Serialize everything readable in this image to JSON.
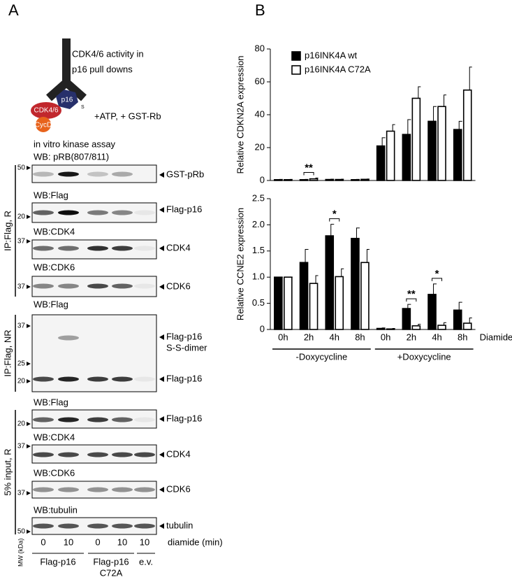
{
  "panel_a": {
    "label": "A",
    "schematic": {
      "title_lines": [
        "CDK4/6 activity in",
        "p16 pull downs"
      ],
      "proteins": [
        "p16",
        "CDK4/6",
        "CycD"
      ],
      "s_label": "S",
      "treatment": "+ATP, + GST-Rb"
    },
    "assay": "in vitro kinase assay",
    "blots": [
      {
        "wb": "WB: pRB(807/811)",
        "markers": [
          "50"
        ],
        "labels": [
          "GST-pRb"
        ]
      },
      {
        "wb": "WB:Flag",
        "markers": [
          "20"
        ],
        "labels": [
          "Flag-p16"
        ]
      },
      {
        "wb": "WB:CDK4",
        "markers": [
          "37"
        ],
        "labels": [
          "CDK4"
        ]
      },
      {
        "wb": "WB:CDK6",
        "markers": [
          "37"
        ],
        "labels": [
          "CDK6"
        ]
      },
      {
        "wb": "WB:Flag",
        "markers": [
          "37",
          "25",
          "20"
        ],
        "labels": [
          "Flag-p16",
          "S-S-dimer",
          "Flag-p16"
        ]
      },
      {
        "wb": "WB:Flag",
        "markers": [
          "20"
        ],
        "labels": [
          "Flag-p16"
        ]
      },
      {
        "wb": "WB:CDK4",
        "markers": [
          "37"
        ],
        "labels": [
          "CDK4"
        ]
      },
      {
        "wb": "WB:CDK6",
        "markers": [
          "37"
        ],
        "labels": [
          "CDK6"
        ]
      },
      {
        "wb": "WB:tubulin",
        "markers": [
          "50"
        ],
        "labels": [
          "tubulin"
        ]
      }
    ],
    "sections": [
      "IP:Flag, R",
      "IP:Flag, NR",
      "5% input, R"
    ],
    "diamide": [
      "0",
      "10",
      "0",
      "10",
      "10"
    ],
    "diamide_label": "diamide (min)",
    "mw_label": "MW (kDa)",
    "groups": [
      [
        "Flag-p16"
      ],
      [
        "Flag-p16",
        "C72A"
      ],
      [
        "e.v."
      ]
    ]
  },
  "panel_b": {
    "label": "B"
  },
  "chart_data": [
    {
      "type": "bar",
      "ylabel": "Relative CDKN2A expression",
      "ylim": [
        0,
        80
      ],
      "yticks": [
        0,
        20,
        40,
        60,
        80
      ],
      "legend": "upper-left",
      "annotations": [
        "**"
      ],
      "series": [
        {
          "name": "p16INK4A wt",
          "color": "#000000",
          "values": [
            0.5,
            0.5,
            0.6,
            0.5,
            21,
            28,
            36,
            31
          ],
          "errors": [
            0.2,
            0.2,
            0.2,
            0.2,
            5,
            9,
            9,
            5
          ]
        },
        {
          "name": "p16INK4A C72A",
          "color": "#ffffff",
          "values": [
            0.5,
            1,
            0.6,
            0.7,
            30,
            50,
            45,
            55
          ],
          "errors": [
            0.2,
            0.5,
            0.2,
            0.2,
            4,
            7,
            7,
            14
          ]
        }
      ]
    },
    {
      "type": "bar",
      "ylabel": "Relative CCNE2 expression",
      "ylim": [
        0,
        2.5
      ],
      "yticks": [
        0,
        0.5,
        {
          "value": 1,
          "label": "1.0"
        },
        1.5,
        {
          "value": 2,
          "label": "2.0"
        },
        2.5
      ],
      "categories": [
        "0h",
        "2h",
        "4h",
        "8h",
        "0h",
        "2h",
        "4h",
        "8h"
      ],
      "xlabel": "Diamide",
      "groups": [
        "-Doxycycline",
        "+Doxycycline"
      ],
      "annotations": [
        "*",
        "**",
        "*"
      ],
      "series": [
        {
          "name": "p16INK4A wt",
          "color": "#000000",
          "values": [
            1,
            1.28,
            1.79,
            1.74,
            0.02,
            0.4,
            0.67,
            0.37
          ],
          "errors": [
            0,
            0.25,
            0.22,
            0.2,
            0.01,
            0.08,
            0.2,
            0.15
          ]
        },
        {
          "name": "p16INK4A C72A",
          "color": "#ffffff",
          "values": [
            1,
            0.88,
            1.01,
            1.28,
            0.01,
            0.07,
            0.08,
            0.12
          ],
          "errors": [
            0,
            0.15,
            0.15,
            0.25,
            0.01,
            0.03,
            0.05,
            0.1
          ]
        }
      ]
    }
  ]
}
